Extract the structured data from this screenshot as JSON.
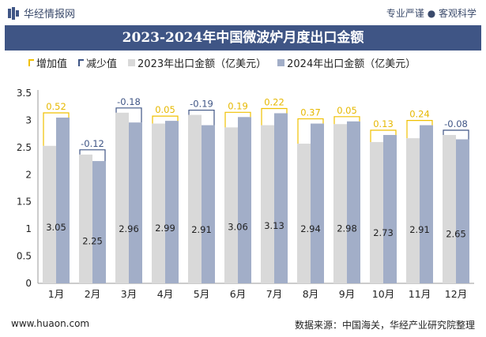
{
  "header": {
    "brand": "华经情报网",
    "tags": "专业严谨 ● 客观科学",
    "title": "2023-2024年中国微波炉月度出口金额"
  },
  "legend": {
    "increase": "增加值",
    "decrease": "减少值",
    "s2023": "2023年出口金额（亿美元）",
    "s2024": "2024年出口金额（亿美元）"
  },
  "footer": {
    "url": "www.huaon.com",
    "source": "数据来源：中国海关，华经产业研究院整理"
  },
  "colors": {
    "bar2023": "#d9d9d9",
    "bar2024": "#a2aec8",
    "increase": "#f0c000",
    "decrease": "#3f5585",
    "title_bg": "#3f5585"
  },
  "chart_data": {
    "type": "bar",
    "categories": [
      "1月",
      "2月",
      "3月",
      "4月",
      "5月",
      "6月",
      "7月",
      "8月",
      "9月",
      "10月",
      "11月",
      "12月"
    ],
    "series": [
      {
        "name": "2023年出口金额（亿美元）",
        "values": [
          2.53,
          2.37,
          3.14,
          2.94,
          3.1,
          2.87,
          2.91,
          2.57,
          2.93,
          2.6,
          2.67,
          2.73
        ]
      },
      {
        "name": "2024年出口金额（亿美元）",
        "values": [
          3.05,
          2.25,
          2.96,
          2.99,
          2.91,
          3.06,
          3.13,
          2.94,
          2.98,
          2.73,
          2.91,
          2.65
        ]
      }
    ],
    "change_labels": [
      "0.52",
      "-0.12",
      "-0.18",
      "0.05",
      "-0.19",
      "0.19",
      "0.22",
      "0.37",
      "0.05",
      "0.13",
      "0.24",
      "-0.08"
    ],
    "value_labels_2024": [
      "3.05",
      "2.25",
      "2.96",
      "2.99",
      "2.91",
      "3.06",
      "3.13",
      "2.94",
      "2.98",
      "2.73",
      "2.91",
      "2.65"
    ],
    "yticks": [
      "0",
      "0.5",
      "1",
      "1.5",
      "2",
      "2.5",
      "3",
      "3.5"
    ],
    "ylim": [
      0,
      3.5
    ]
  }
}
